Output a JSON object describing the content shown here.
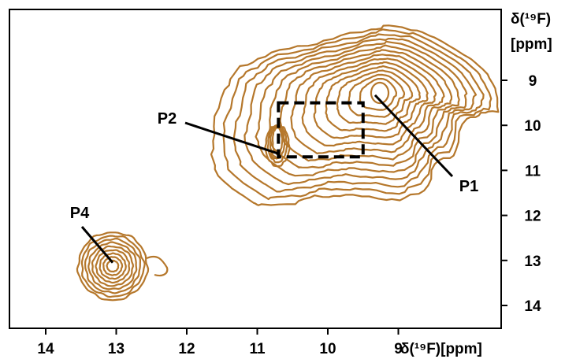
{
  "chart_data": {
    "type": "contour",
    "xlabel": "δ(¹⁹F)[ppm]",
    "ylabel_line1": "δ(¹⁹F)",
    "ylabel_line2": "[ppm]",
    "xlim": [
      14.5,
      7.5
    ],
    "ylim": [
      8.0,
      14.5
    ],
    "x_ticks": [
      14,
      13,
      12,
      11,
      10,
      9
    ],
    "x_tick_labels": [
      "14",
      "13",
      "12",
      "11",
      "10",
      "9"
    ],
    "y_ticks": [
      9,
      10,
      11,
      12,
      13,
      14
    ],
    "y_tick_labels": [
      "9",
      "10",
      "11",
      "12",
      "13",
      "14"
    ],
    "contour_color": "#b5772b",
    "peaks": [
      {
        "label": "P1",
        "x": 9.33,
        "y": 9.33
      },
      {
        "label": "P2",
        "x": 10.7,
        "y": 10.63
      },
      {
        "label": "P4",
        "x": 13.05,
        "y": 13.05
      }
    ],
    "highlight_box": {
      "x_range": [
        10.7,
        9.5
      ],
      "y_range": [
        9.5,
        10.7
      ],
      "style": "dashed"
    }
  }
}
